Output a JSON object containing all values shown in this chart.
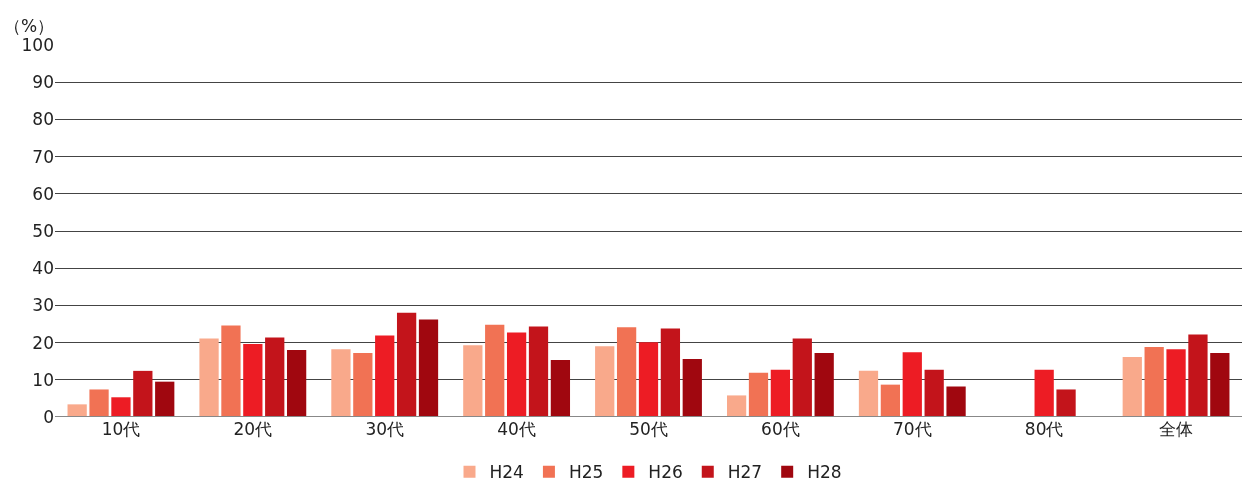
{
  "chart_data": {
    "type": "bar",
    "ylabel": "（%）",
    "categories": [
      "10代",
      "20代",
      "30代",
      "40代",
      "50代",
      "60代",
      "70代",
      "80代",
      "全体"
    ],
    "series": [
      {
        "name": "H24",
        "color": "#f9a98b",
        "values": [
          3.4,
          21.1,
          18.2,
          19.3,
          19.0,
          5.8,
          12.4,
          null,
          16.1
        ]
      },
      {
        "name": "H25",
        "color": "#f17254",
        "values": [
          7.4,
          24.6,
          17.2,
          24.8,
          24.1,
          11.9,
          8.7,
          null,
          18.8
        ]
      },
      {
        "name": "H26",
        "color": "#ed1c24",
        "values": [
          5.3,
          19.6,
          21.9,
          22.7,
          20.1,
          12.7,
          17.4,
          12.7,
          18.2
        ]
      },
      {
        "name": "H27",
        "color": "#c3141b",
        "values": [
          12.4,
          21.4,
          28.0,
          24.3,
          23.8,
          21.1,
          12.7,
          7.4,
          22.2
        ]
      },
      {
        "name": "H28",
        "color": "#a0070f",
        "values": [
          9.5,
          18.0,
          26.2,
          15.3,
          15.6,
          17.2,
          8.2,
          null,
          17.2
        ]
      }
    ],
    "ylim": [
      0,
      100
    ],
    "yticks": [
      0,
      10,
      20,
      30,
      40,
      50,
      60,
      70,
      80,
      90,
      100
    ],
    "grid": "y",
    "legend": "bottom"
  }
}
